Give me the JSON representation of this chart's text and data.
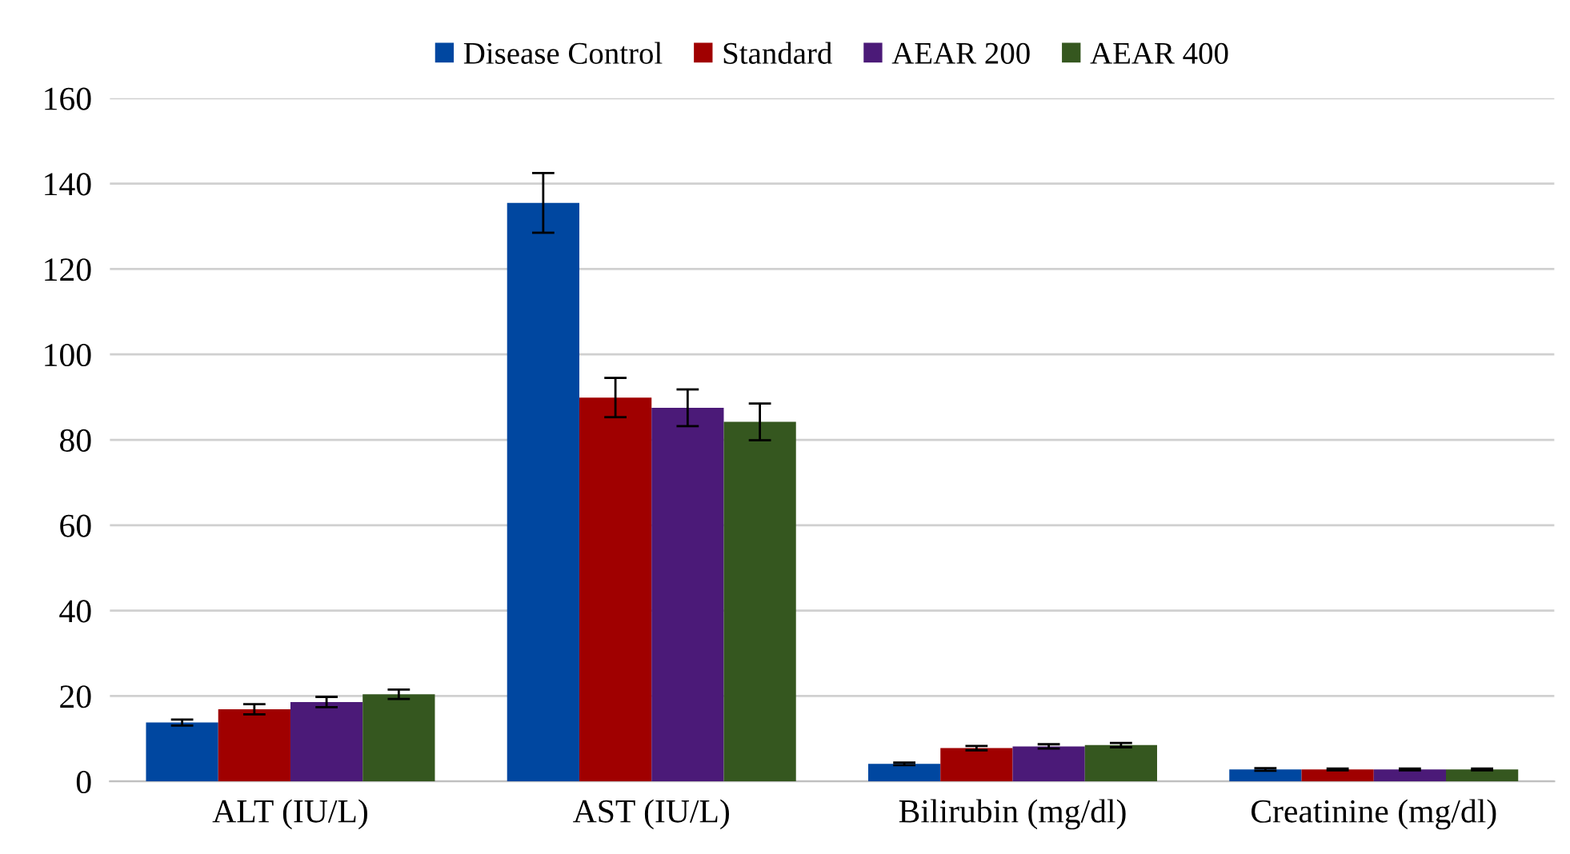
{
  "chart_data": {
    "type": "bar",
    "categories": [
      "ALT (IU/L)",
      "AST (IU/L)",
      "Bilirubin (mg/dl)",
      "Creatinine (mg/dl)"
    ],
    "series": [
      {
        "name": "Disease Control",
        "color": "#0047a0",
        "values": [
          13.8,
          135.5,
          4.1,
          2.8
        ],
        "errors": [
          0.7,
          7,
          0.3,
          0.3
        ]
      },
      {
        "name": "Standard",
        "color": "#a00000",
        "values": [
          16.9,
          89.9,
          7.8,
          2.8
        ],
        "errors": [
          1.2,
          4.6,
          0.5,
          0.2
        ]
      },
      {
        "name": "AEAR 200",
        "color": "#4b1a78",
        "values": [
          18.6,
          87.5,
          8.2,
          2.8
        ],
        "errors": [
          1.2,
          4.3,
          0.5,
          0.2
        ]
      },
      {
        "name": "AEAR 400",
        "color": "#35571f",
        "values": [
          20.4,
          84.2,
          8.5,
          2.8
        ],
        "errors": [
          1.1,
          4.3,
          0.5,
          0.2
        ]
      }
    ],
    "ylim": [
      0,
      160
    ],
    "yticks": [
      0,
      20,
      40,
      60,
      80,
      100,
      120,
      140,
      160
    ],
    "grid": "y",
    "legend": "top"
  }
}
